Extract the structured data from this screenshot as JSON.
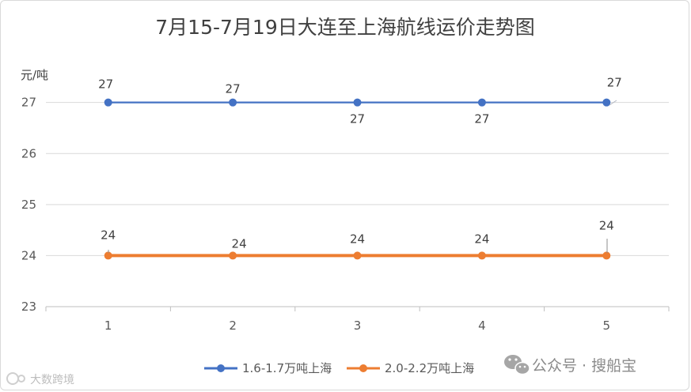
{
  "chart_data": {
    "type": "line",
    "title": "7月15-7月19日大连至上海航线运价走势图",
    "ylabel": "元/吨",
    "xlabel": "",
    "categories": [
      "1",
      "2",
      "3",
      "4",
      "5"
    ],
    "yticks": [
      "23",
      "24",
      "25",
      "26",
      "27"
    ],
    "ylim": [
      23,
      27.8
    ],
    "grid": true,
    "legend": "bottom",
    "series": [
      {
        "name": "1.6-1.7万吨上海",
        "values": [
          27,
          27,
          27,
          27,
          27
        ],
        "labels": [
          "27",
          "27",
          "27",
          "27",
          "27"
        ],
        "color": "#4472c4"
      },
      {
        "name": "2.0-2.2万吨上海",
        "values": [
          24,
          24,
          24,
          24,
          24
        ],
        "labels": [
          "24",
          "24",
          "24",
          "24",
          "24"
        ],
        "color": "#ed7d31"
      }
    ]
  },
  "watermarks": {
    "left": "大数跨境",
    "right": "公众号 · 搜船宝",
    "left_icon": "logo-icon",
    "right_icon": "wechat-icon"
  }
}
